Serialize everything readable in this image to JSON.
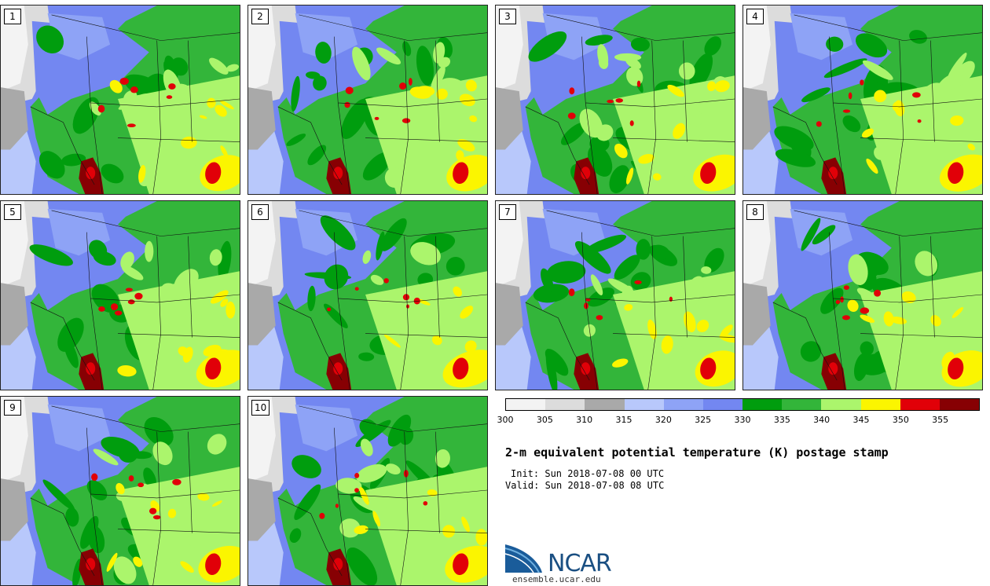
{
  "panels": [
    {
      "label": "1"
    },
    {
      "label": "2"
    },
    {
      "label": "3"
    },
    {
      "label": "4"
    },
    {
      "label": "5"
    },
    {
      "label": "6"
    },
    {
      "label": "7"
    },
    {
      "label": "8"
    },
    {
      "label": "9"
    },
    {
      "label": "10"
    }
  ],
  "colorbar": {
    "colors": [
      "#f3f3f3",
      "#dcdcdc",
      "#a9a9a9",
      "#b8c8fb",
      "#8ea3f6",
      "#7387f1",
      "#009d0e",
      "#33b53a",
      "#abf56c",
      "#fbf500",
      "#e10008",
      "#870003"
    ],
    "ticks": [
      "300",
      "305",
      "310",
      "315",
      "320",
      "325",
      "330",
      "335",
      "340",
      "345",
      "350",
      "355"
    ]
  },
  "title": "2-m equivalent potential temperature (K) postage stamp",
  "init": "Init: Sun 2018-07-08 00 UTC",
  "valid": "Valid: Sun 2018-07-08 08 UTC",
  "logo": {
    "text": "NCAR",
    "url": "ensemble.ucar.edu"
  }
}
